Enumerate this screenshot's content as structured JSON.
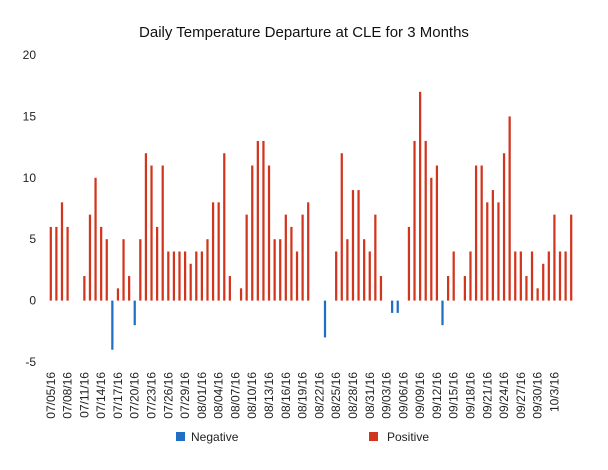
{
  "chart_data": {
    "type": "bar",
    "title": "Daily Temperature Departure at CLE for 3 Months",
    "xlabel": "",
    "ylabel": "",
    "ylim": [
      -5,
      20
    ],
    "yticks": [
      "-5",
      "0",
      "5",
      "10",
      "15",
      "20"
    ],
    "grid": false,
    "legend_position": "bottom",
    "legend": [
      {
        "name": "Negative",
        "color": "#1f6fc5"
      },
      {
        "name": "Positive",
        "color": "#d2351e"
      }
    ],
    "x_tick_labels": [
      "07/05/16",
      "07/08/16",
      "07/11/16",
      "07/14/16",
      "07/17/16",
      "07/20/16",
      "07/23/16",
      "07/26/16",
      "07/29/16",
      "08/01/16",
      "08/04/16",
      "08/07/16",
      "08/10/16",
      "08/13/16",
      "08/16/16",
      "08/19/16",
      "08/22/16",
      "08/25/16",
      "08/28/16",
      "08/31/16",
      "09/03/16",
      "09/06/16",
      "09/09/16",
      "09/12/16",
      "09/15/16",
      "09/18/16",
      "09/21/16",
      "09/24/16",
      "09/27/16",
      "09/30/16",
      "10/3/16"
    ],
    "start_label": "07/05/16",
    "values": [
      6,
      6,
      8,
      6,
      0,
      0,
      2,
      7,
      10,
      6,
      5,
      -4,
      1,
      5,
      2,
      -2,
      5,
      12,
      11,
      6,
      11,
      4,
      4,
      4,
      4,
      3,
      4,
      4,
      5,
      8,
      8,
      12,
      2,
      0,
      1,
      7,
      11,
      13,
      13,
      11,
      5,
      5,
      7,
      6,
      4,
      7,
      8,
      0,
      0,
      -3,
      0,
      4,
      12,
      5,
      9,
      9,
      5,
      4,
      7,
      2,
      0,
      -1,
      -1,
      0,
      6,
      13,
      17,
      13,
      10,
      11,
      -2,
      2,
      4,
      0,
      2,
      4,
      11,
      11,
      8,
      9,
      8,
      12,
      15,
      4,
      4,
      2,
      4,
      1,
      3,
      4,
      7,
      4,
      4,
      7
    ]
  }
}
